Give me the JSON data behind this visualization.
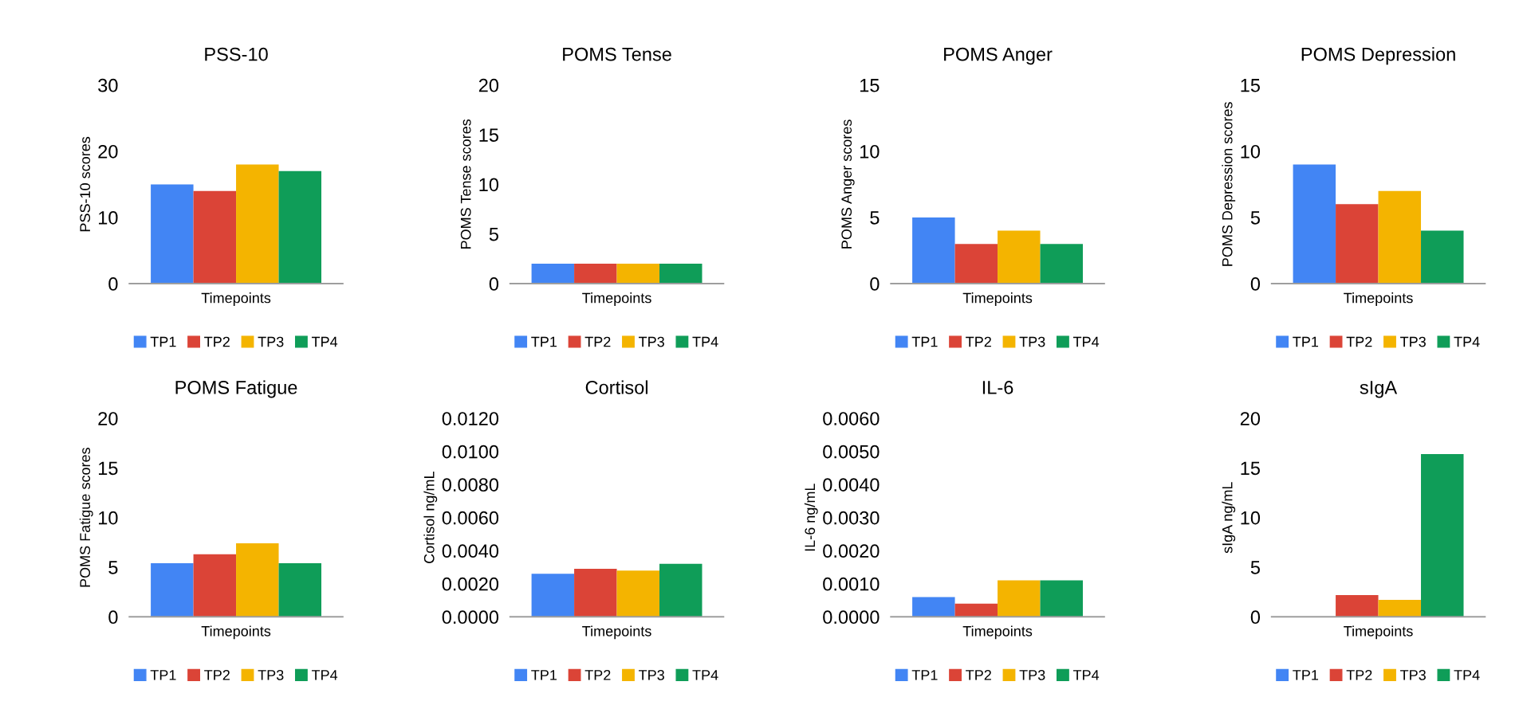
{
  "chart_data": [
    {
      "type": "bar",
      "title": "PSS-10",
      "xlabel": "Timepoints",
      "ylabel": "PSS-10 scores",
      "categories": [
        null
      ],
      "ylim": [
        0,
        30
      ],
      "yticks": [
        0,
        10,
        20,
        30
      ],
      "legend": "bottom",
      "tick_labels": "y",
      "series": [
        {
          "name": "TP1",
          "color": "#4285f4",
          "values": [
            15
          ]
        },
        {
          "name": "TP2",
          "color": "#db4437",
          "values": [
            14
          ]
        },
        {
          "name": "TP3",
          "color": "#f4b400",
          "values": [
            18
          ]
        },
        {
          "name": "TP4",
          "color": "#0f9d58",
          "values": [
            17
          ]
        }
      ]
    },
    {
      "type": "bar",
      "title": "POMS Tense",
      "xlabel": "Timepoints",
      "ylabel": "POMS Tense scores",
      "categories": [
        null
      ],
      "ylim": [
        0,
        20
      ],
      "yticks": [
        0,
        5,
        10,
        15,
        20
      ],
      "legend": "bottom",
      "tick_labels": "y",
      "series": [
        {
          "name": "TP1",
          "color": "#4285f4",
          "values": [
            2
          ]
        },
        {
          "name": "TP2",
          "color": "#db4437",
          "values": [
            2
          ]
        },
        {
          "name": "TP3",
          "color": "#f4b400",
          "values": [
            2
          ]
        },
        {
          "name": "TP4",
          "color": "#0f9d58",
          "values": [
            2
          ]
        }
      ]
    },
    {
      "type": "bar",
      "title": "POMS Anger",
      "xlabel": "Timepoints",
      "ylabel": "POMS Anger scores",
      "categories": [
        null
      ],
      "ylim": [
        0,
        15
      ],
      "yticks": [
        0,
        5,
        10,
        15
      ],
      "legend": "bottom",
      "tick_labels": "y",
      "series": [
        {
          "name": "TP1",
          "color": "#4285f4",
          "values": [
            5
          ]
        },
        {
          "name": "TP2",
          "color": "#db4437",
          "values": [
            3
          ]
        },
        {
          "name": "TP3",
          "color": "#f4b400",
          "values": [
            4
          ]
        },
        {
          "name": "TP4",
          "color": "#0f9d58",
          "values": [
            3
          ]
        }
      ]
    },
    {
      "type": "bar",
      "title": "POMS Depression",
      "xlabel": "Timepoints",
      "ylabel": "POMS Depression scores",
      "categories": [
        null
      ],
      "ylim": [
        0,
        15
      ],
      "yticks": [
        0,
        5,
        10,
        15
      ],
      "legend": "bottom",
      "tick_labels": "y",
      "series": [
        {
          "name": "TP1",
          "color": "#4285f4",
          "values": [
            9
          ]
        },
        {
          "name": "TP2",
          "color": "#db4437",
          "values": [
            6
          ]
        },
        {
          "name": "TP3",
          "color": "#f4b400",
          "values": [
            7
          ]
        },
        {
          "name": "TP4",
          "color": "#0f9d58",
          "values": [
            4
          ]
        }
      ]
    },
    {
      "type": "bar",
      "title": "POMS Fatigue",
      "xlabel": "Timepoints",
      "ylabel": "POMS Fatigue scores",
      "categories": [
        null
      ],
      "ylim": [
        0,
        20
      ],
      "yticks": [
        0,
        5,
        10,
        15,
        20
      ],
      "legend": "bottom",
      "tick_labels": "y",
      "series": [
        {
          "name": "TP1",
          "color": "#4285f4",
          "values": [
            5.4
          ]
        },
        {
          "name": "TP2",
          "color": "#db4437",
          "values": [
            6.3
          ]
        },
        {
          "name": "TP3",
          "color": "#f4b400",
          "values": [
            7.4
          ]
        },
        {
          "name": "TP4",
          "color": "#0f9d58",
          "values": [
            5.4
          ]
        }
      ]
    },
    {
      "type": "bar",
      "title": "Cortisol",
      "xlabel": "Timepoints",
      "ylabel": "Cortisol ng/mL",
      "categories": [
        null
      ],
      "ylim": [
        0,
        0.012
      ],
      "yticks": [
        {
          "value": 0,
          "label": "0.0000"
        },
        {
          "value": 0.002,
          "label": "0.0020"
        },
        {
          "value": 0.004,
          "label": "0.0040"
        },
        {
          "value": 0.006,
          "label": "0.0060"
        },
        {
          "value": 0.008,
          "label": "0.0080"
        },
        {
          "value": 0.01,
          "label": "0.0100"
        },
        {
          "value": 0.012,
          "label": "0.0120"
        }
      ],
      "legend": "bottom",
      "tick_labels": "y",
      "series": [
        {
          "name": "TP1",
          "color": "#4285f4",
          "values": [
            0.0026
          ]
        },
        {
          "name": "TP2",
          "color": "#db4437",
          "values": [
            0.0029
          ]
        },
        {
          "name": "TP3",
          "color": "#f4b400",
          "values": [
            0.0028
          ]
        },
        {
          "name": "TP4",
          "color": "#0f9d58",
          "values": [
            0.0032
          ]
        }
      ]
    },
    {
      "type": "bar",
      "title": "IL-6",
      "xlabel": "Timepoints",
      "ylabel": "IL-6 ng/mL",
      "categories": [
        null
      ],
      "ylim": [
        0,
        0.006
      ],
      "yticks": [
        {
          "value": 0,
          "label": "0.0000"
        },
        {
          "value": 0.001,
          "label": "0.0010"
        },
        {
          "value": 0.002,
          "label": "0.0020"
        },
        {
          "value": 0.003,
          "label": "0.0030"
        },
        {
          "value": 0.004,
          "label": "0.0040"
        },
        {
          "value": 0.005,
          "label": "0.0050"
        },
        {
          "value": 0.006,
          "label": "0.0060"
        }
      ],
      "legend": "bottom",
      "tick_labels": "y",
      "series": [
        {
          "name": "TP1",
          "color": "#4285f4",
          "values": [
            0.0006
          ]
        },
        {
          "name": "TP2",
          "color": "#db4437",
          "values": [
            0.0004
          ]
        },
        {
          "name": "TP3",
          "color": "#f4b400",
          "values": [
            0.0011
          ]
        },
        {
          "name": "TP4",
          "color": "#0f9d58",
          "values": [
            0.0011
          ]
        }
      ]
    },
    {
      "type": "bar",
      "title": "sIgA",
      "xlabel": "Timepoints",
      "ylabel": "sIgA ng/mL",
      "categories": [
        null
      ],
      "ylim": [
        0,
        20
      ],
      "yticks": [
        0,
        5,
        10,
        15,
        20
      ],
      "legend": "bottom",
      "tick_labels": "y",
      "series": [
        {
          "name": "TP1",
          "color": "#4285f4",
          "values": [
            0
          ]
        },
        {
          "name": "TP2",
          "color": "#db4437",
          "values": [
            2.2
          ]
        },
        {
          "name": "TP3",
          "color": "#f4b400",
          "values": [
            1.7
          ]
        },
        {
          "name": "TP4",
          "color": "#0f9d58",
          "values": [
            16.4
          ]
        }
      ]
    }
  ]
}
